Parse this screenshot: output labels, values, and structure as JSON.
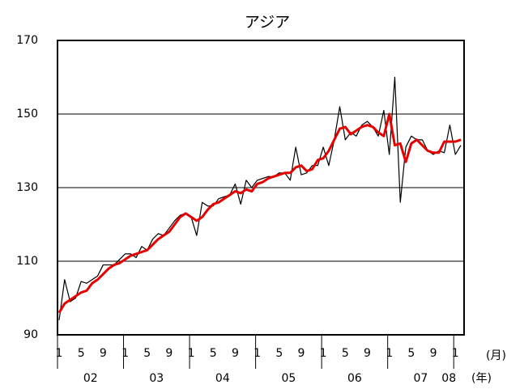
{
  "chart_data": {
    "type": "line",
    "title": "アジア",
    "categories": [
      "1",
      null,
      null,
      null,
      "5",
      null,
      null,
      null,
      "9",
      null,
      null,
      null,
      "1",
      null,
      null,
      null,
      "5",
      null,
      null,
      null,
      "9",
      null,
      null,
      null,
      "1",
      null,
      null,
      null,
      "5",
      null,
      null,
      null,
      "9",
      null,
      null,
      null,
      "1",
      null,
      null,
      null,
      "5",
      null,
      null,
      null,
      "9",
      null,
      null,
      null,
      "1",
      null,
      null,
      null,
      "5",
      null,
      null,
      null,
      "9",
      null,
      null,
      null,
      "1",
      null,
      null,
      null,
      "5",
      null,
      null,
      null,
      "9",
      null,
      null,
      null,
      "1",
      null
    ],
    "years": [
      "02",
      "03",
      "04",
      "05",
      "06",
      "07",
      "08"
    ],
    "month_unit": "(月)",
    "year_unit": "(年)",
    "series": [
      {
        "color": "#000000",
        "values": [
          94,
          105,
          99,
          100,
          104.5,
          104,
          105,
          106,
          109,
          109,
          109,
          110.5,
          112,
          112,
          111,
          114,
          113,
          116,
          117.5,
          117,
          119,
          121,
          122.5,
          123,
          122,
          117,
          126,
          125,
          125,
          127,
          127.5,
          128,
          131,
          125.5,
          132,
          130,
          132,
          132.5,
          133,
          133,
          134,
          134,
          132,
          141,
          133.5,
          134,
          136,
          136,
          141,
          136,
          143,
          152,
          143,
          145,
          144,
          147,
          148,
          146.5,
          144,
          151,
          139,
          160,
          126,
          141,
          144,
          143,
          143,
          140,
          139,
          140,
          139.5,
          147,
          139,
          141.5
        ]
      },
      {
        "color": "#e60000",
        "values": [
          96,
          98.5,
          99.5,
          100.5,
          101.5,
          102,
          104,
          105,
          106.5,
          108,
          109,
          109.5,
          110.5,
          111.5,
          112,
          112.5,
          113,
          114.5,
          116,
          117,
          118,
          120,
          122,
          123,
          122,
          121,
          122,
          124,
          125.5,
          126,
          127,
          128,
          129,
          128.5,
          129.5,
          129,
          131,
          131.5,
          132.5,
          133,
          133.5,
          134,
          134,
          135.5,
          136,
          134.5,
          135,
          137.5,
          138,
          140,
          143,
          146,
          146.5,
          144.5,
          145.5,
          146.5,
          147,
          146.5,
          145,
          144,
          150,
          141.5,
          142,
          137,
          142,
          143,
          141.5,
          140,
          139.5,
          139.5,
          142.5,
          142.5,
          142.5,
          143
        ]
      }
    ],
    "ylim": [
      90,
      170
    ],
    "yticks": [
      90,
      110,
      130,
      150,
      170
    ],
    "grid": true
  }
}
